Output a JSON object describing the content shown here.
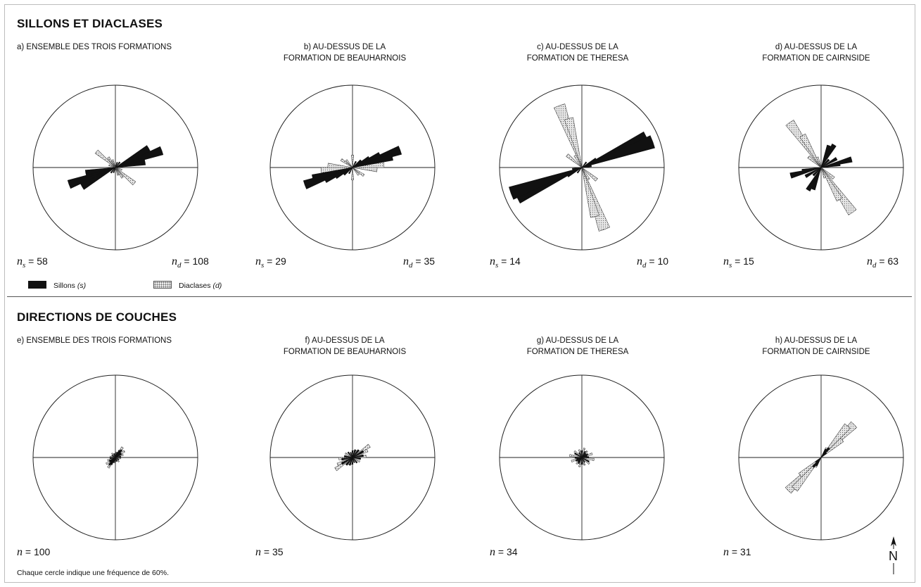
{
  "title_top": "SILLONS ET DIACLASES",
  "title_bottom": "DIRECTIONS DE COUCHES",
  "panels_top": [
    {
      "id": "a",
      "caption": [
        "a) ENSEMBLE DES TROIS FORMATIONS"
      ],
      "ns": "58",
      "nd": "108"
    },
    {
      "id": "b",
      "caption": [
        "b) AU-DESSUS DE LA",
        "FORMATION DE BEAUHARNOIS"
      ],
      "ns": "29",
      "nd": "35"
    },
    {
      "id": "c",
      "caption": [
        "c) AU-DESSUS DE LA",
        "FORMATION DE THERESA"
      ],
      "ns": "14",
      "nd": "10"
    },
    {
      "id": "d",
      "caption": [
        "d) AU-DESSUS DE LA",
        "FORMATION DE CAIRNSIDE"
      ],
      "ns": "15",
      "nd": "63"
    }
  ],
  "panels_bottom": [
    {
      "id": "e",
      "caption": [
        "e) ENSEMBLE DES TROIS FORMATIONS"
      ],
      "n": "100"
    },
    {
      "id": "f",
      "caption": [
        "f) AU-DESSUS DE LA",
        "FORMATION DE BEAUHARNOIS"
      ],
      "n": "35"
    },
    {
      "id": "g",
      "caption": [
        "g) AU-DESSUS DE LA",
        "FORMATION DE THERESA"
      ],
      "n": "34"
    },
    {
      "id": "h",
      "caption": [
        "h) AU-DESSUS DE LA",
        "FORMATION DE CAIRNSIDE"
      ],
      "n": "31"
    }
  ],
  "legend": {
    "sillons": "Sillons",
    "sillons_sym": "(s)",
    "diaclases": "Diaclases",
    "diaclases_sym": "(d)"
  },
  "note": "Chaque cercle indique une fréquence de 60%.",
  "north_label": "N",
  "colors": {
    "sillons": "#111111",
    "diaclases": "#e6e6e6",
    "line": "#222222"
  },
  "chart_data": [
    {
      "id": "a",
      "type": "rose",
      "rmax": 60,
      "series": [
        {
          "name": "Sillons (s)",
          "petals": [
            [
              60,
              28
            ],
            [
              70,
              36
            ],
            [
              75,
              20
            ],
            [
              80,
              22
            ],
            [
              40,
              5
            ],
            [
              20,
              4
            ]
          ]
        },
        {
          "name": "Diaclases (d)",
          "petals": [
            [
              130,
              18
            ],
            [
              145,
              9
            ],
            [
              160,
              6
            ],
            [
              110,
              5
            ]
          ]
        }
      ]
    },
    {
      "id": "b",
      "type": "rose",
      "rmax": 60,
      "series": [
        {
          "name": "Sillons (s)",
          "petals": [
            [
              70,
              37
            ],
            [
              75,
              30
            ],
            [
              65,
              22
            ],
            [
              60,
              14
            ],
            [
              50,
              8
            ],
            [
              30,
              5
            ]
          ]
        },
        {
          "name": "Diaclases (d)",
          "petals": [
            [
              85,
              23
            ],
            [
              95,
              18
            ],
            [
              180,
              9
            ],
            [
              0,
              9
            ],
            [
              125,
              10
            ],
            [
              140,
              7
            ]
          ]
        }
      ]
    },
    {
      "id": "c",
      "type": "rose",
      "rmax": 60,
      "series": [
        {
          "name": "Sillons (s)",
          "petals": [
            [
              65,
              52
            ],
            [
              70,
              55
            ],
            [
              60,
              12
            ],
            [
              80,
              7
            ],
            [
              40,
              5
            ]
          ]
        },
        {
          "name": "Diaclases (d)",
          "petals": [
            [
              160,
              48
            ],
            [
              165,
              37
            ],
            [
              130,
              14
            ],
            [
              150,
              10
            ]
          ]
        }
      ]
    },
    {
      "id": "d",
      "type": "rose",
      "rmax": 60,
      "series": [
        {
          "name": "Sillons (s)",
          "petals": [
            [
              30,
              19
            ],
            [
              20,
              17
            ],
            [
              75,
              23
            ],
            [
              60,
              13
            ],
            [
              80,
              14
            ],
            [
              45,
              8
            ]
          ]
        },
        {
          "name": "Diaclases (d)",
          "petals": [
            [
              145,
              40
            ],
            [
              150,
              27
            ],
            [
              130,
              12
            ],
            [
              160,
              8
            ]
          ]
        }
      ]
    },
    {
      "id": "e",
      "type": "rose",
      "rmax": 60,
      "series": [
        {
          "name": "Sillons (s)",
          "petals": [
            [
              40,
              7
            ],
            [
              50,
              5
            ],
            [
              30,
              6
            ],
            [
              60,
              5
            ],
            [
              20,
              4
            ],
            [
              80,
              4
            ],
            [
              120,
              3
            ],
            [
              160,
              3
            ],
            [
              0,
              3
            ]
          ]
        },
        {
          "name": "Diaclases (d)",
          "petals": [
            [
              35,
              9
            ],
            [
              55,
              8
            ],
            [
              70,
              6
            ],
            [
              100,
              4
            ],
            [
              140,
              4
            ],
            [
              10,
              4
            ]
          ]
        }
      ]
    },
    {
      "id": "f",
      "type": "rose",
      "rmax": 60,
      "series": [
        {
          "name": "Sillons (s)",
          "petals": [
            [
              40,
              7
            ],
            [
              60,
              9
            ],
            [
              80,
              8
            ],
            [
              20,
              6
            ],
            [
              100,
              6
            ],
            [
              140,
              5
            ],
            [
              0,
              5
            ],
            [
              160,
              4
            ]
          ]
        },
        {
          "name": "Diaclases (d)",
          "petals": [
            [
              55,
              15
            ],
            [
              65,
              12
            ],
            [
              85,
              10
            ],
            [
              35,
              6
            ],
            [
              120,
              6
            ],
            [
              10,
              5
            ]
          ]
        }
      ]
    },
    {
      "id": "g",
      "type": "rose",
      "rmax": 60,
      "series": [
        {
          "name": "Sillons (s)",
          "petals": [
            [
              30,
              5
            ],
            [
              60,
              5
            ],
            [
              90,
              5
            ],
            [
              120,
              6
            ],
            [
              150,
              4
            ],
            [
              0,
              5
            ],
            [
              45,
              4
            ],
            [
              75,
              4
            ]
          ]
        },
        {
          "name": "Diaclases (d)",
          "petals": [
            [
              15,
              7
            ],
            [
              40,
              6
            ],
            [
              70,
              8
            ],
            [
              100,
              9
            ],
            [
              130,
              7
            ],
            [
              160,
              6
            ],
            [
              175,
              5
            ],
            [
              85,
              5
            ]
          ]
        }
      ]
    },
    {
      "id": "h",
      "type": "rose",
      "rmax": 60,
      "series": [
        {
          "name": "Sillons (s)",
          "petals": [
            [
              40,
              9
            ],
            [
              30,
              7
            ],
            [
              50,
              5
            ]
          ]
        },
        {
          "name": "Diaclases (d)",
          "petals": [
            [
              45,
              34
            ],
            [
              40,
              30
            ],
            [
              50,
              20
            ],
            [
              30,
              8
            ]
          ]
        }
      ]
    }
  ]
}
